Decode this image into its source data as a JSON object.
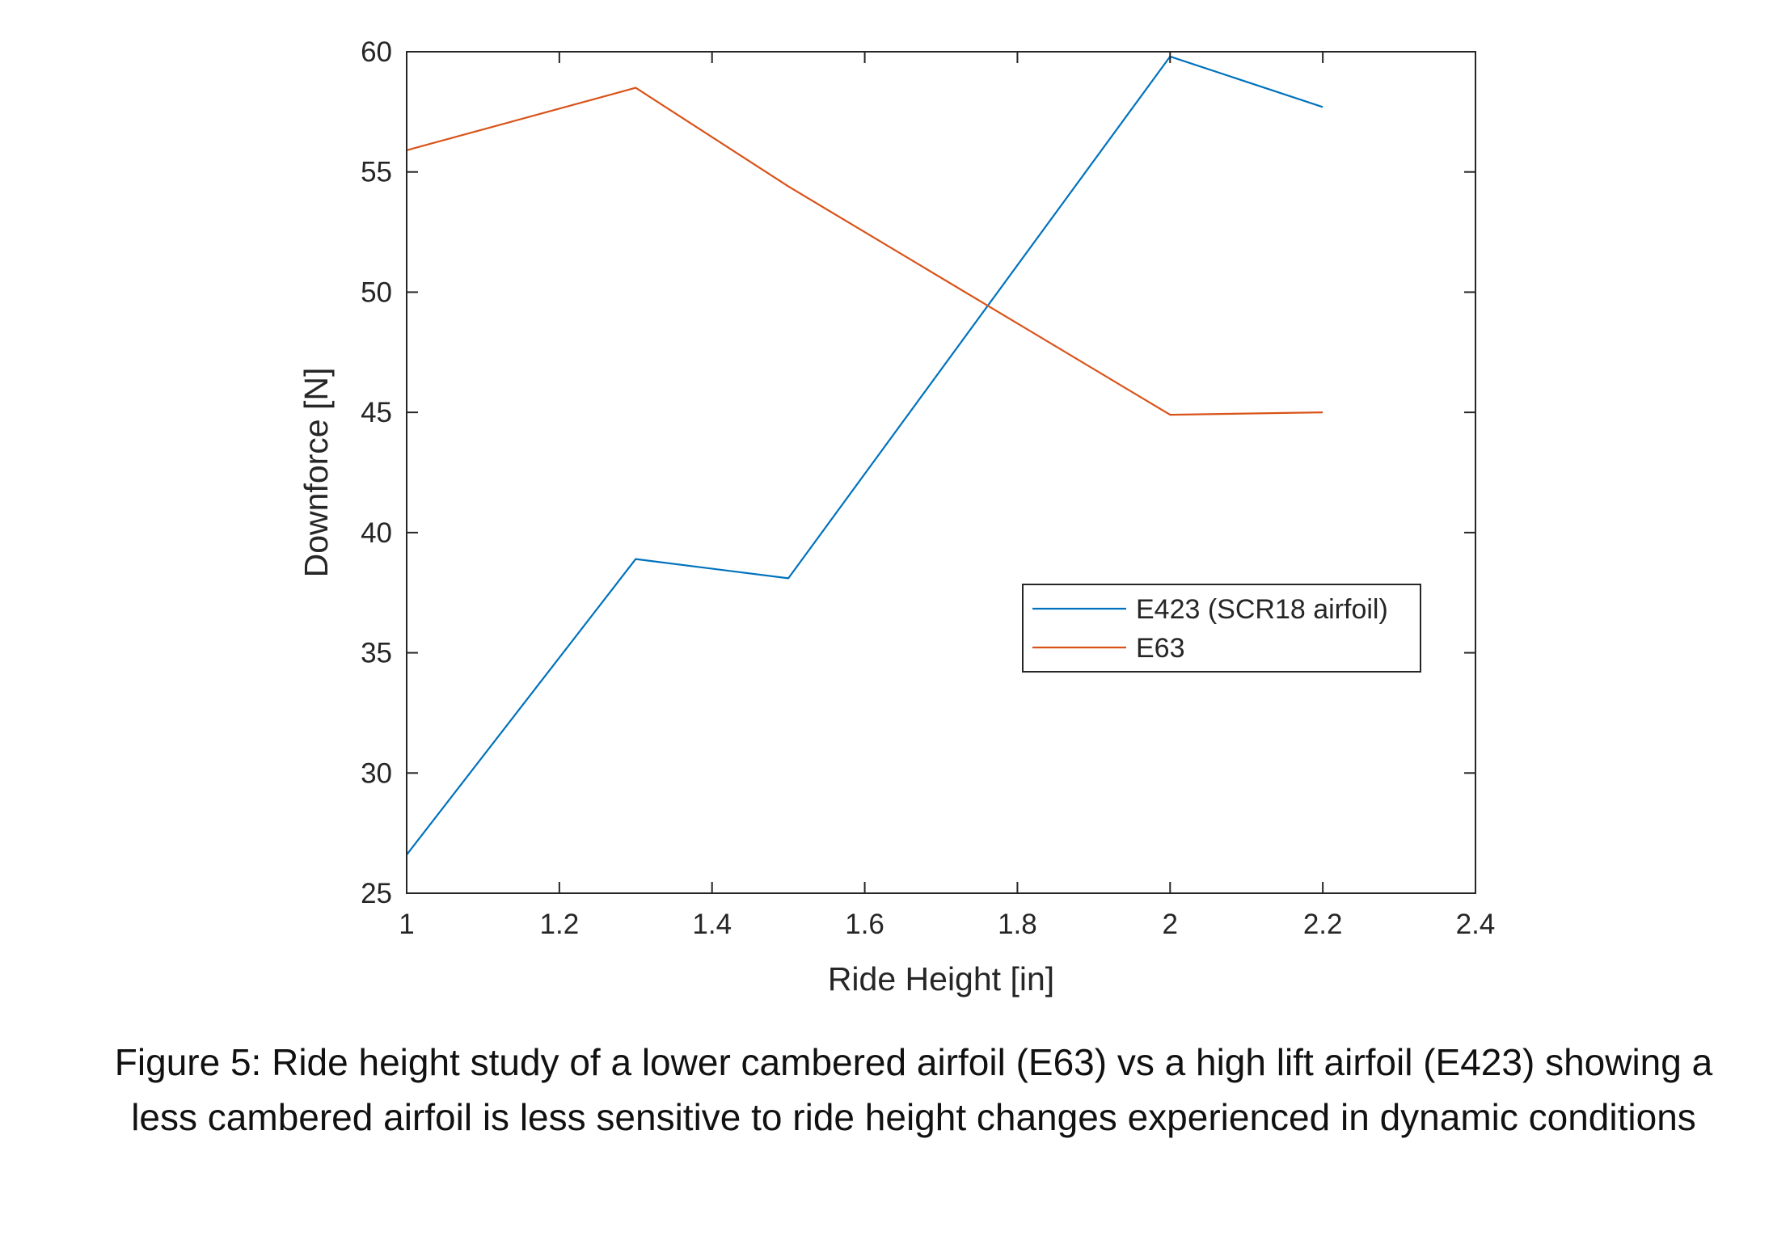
{
  "chart_data": {
    "type": "line",
    "xlabel": "Ride Height [in]",
    "ylabel": "Downforce [N]",
    "xlim": [
      1,
      2.4
    ],
    "ylim": [
      25,
      60
    ],
    "xticks": [
      1,
      1.2,
      1.4,
      1.6,
      1.8,
      2,
      2.2,
      2.4
    ],
    "xtick_labels": [
      "1",
      "1.2",
      "1.4",
      "1.6",
      "1.8",
      "2",
      "2.2",
      "2.4"
    ],
    "yticks": [
      25,
      30,
      35,
      40,
      45,
      50,
      55,
      60
    ],
    "ytick_labels": [
      "25",
      "30",
      "35",
      "40",
      "45",
      "50",
      "55",
      "60"
    ],
    "grid": false,
    "legend_position": "right-center",
    "series": [
      {
        "name": "E423 (SCR18 airfoil)",
        "color": "#0072BD",
        "x": [
          1,
          1.3,
          1.5,
          2,
          2.2
        ],
        "y": [
          26.6,
          38.9,
          38.1,
          59.8,
          57.7
        ]
      },
      {
        "name": "E63",
        "color": "#D95319",
        "x": [
          1,
          1.3,
          1.5,
          2,
          2.2
        ],
        "y": [
          55.9,
          58.5,
          54.4,
          44.9,
          45.0
        ]
      }
    ]
  },
  "caption": "Figure 5: Ride height study of a lower cambered airfoil (E63) vs a high lift airfoil (E423) showing a less cambered airfoil is less sensitive to ride height changes experienced in dynamic conditions"
}
